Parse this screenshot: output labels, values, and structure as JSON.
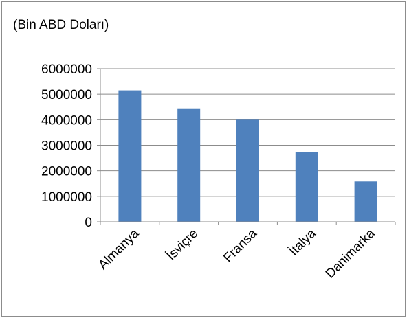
{
  "chart_data": {
    "type": "bar",
    "title": "(Bin ABD Doları)",
    "xlabel": "",
    "ylabel": "",
    "categories": [
      "Almanya",
      "İsviçre",
      "Fransa",
      "İtalya",
      "Danimarka"
    ],
    "values": [
      5150000,
      4420000,
      4000000,
      2730000,
      1580000
    ],
    "ylim": [
      0,
      6000000
    ],
    "yticks": [
      "0",
      "1000000",
      "2000000",
      "3000000",
      "4000000",
      "5000000",
      "6000000"
    ],
    "grid": true,
    "legend": "none",
    "colors": {
      "bar": "#4f81bd",
      "grid": "#8c8c8c",
      "axis": "#8c8c8c",
      "text": "#000000"
    }
  }
}
